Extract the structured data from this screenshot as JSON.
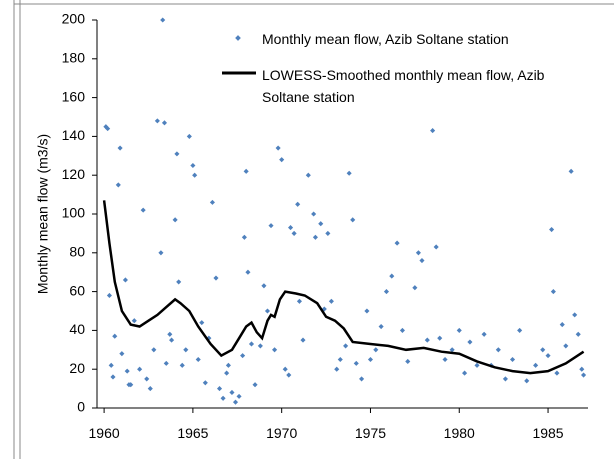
{
  "chart_data": {
    "type": "scatter-line",
    "y_label": "Monthly mean flow (m3/s)",
    "xlim": [
      1959.6,
      1987.25
    ],
    "xticks": [
      1960,
      1965,
      1970,
      1975,
      1980,
      1985
    ],
    "ylim": [
      0,
      200
    ],
    "yticks": [
      0,
      20,
      40,
      60,
      80,
      100,
      120,
      140,
      160,
      180,
      200
    ],
    "series": [
      {
        "name": "Monthly mean flow, Azib Soltane station",
        "kind": "scatter",
        "color": "#4f81bd",
        "x": [
          1960.1,
          1960.2,
          1960.3,
          1960.4,
          1960.5,
          1960.6,
          1960.8,
          1960.9,
          1961,
          1961.2,
          1961.3,
          1961.4,
          1961.5,
          1961.7,
          1962,
          1962.2,
          1962.4,
          1962.6,
          1962.8,
          1963,
          1963.2,
          1963.3,
          1963.4,
          1963.5,
          1963.7,
          1963.8,
          1964,
          1964.1,
          1964.2,
          1964.4,
          1964.6,
          1964.8,
          1965,
          1965.1,
          1965.3,
          1965.5,
          1965.7,
          1965.9,
          1966.1,
          1966.3,
          1966.5,
          1966.7,
          1966.9,
          1967,
          1967.2,
          1967.4,
          1967.6,
          1967.8,
          1967.9,
          1968,
          1968.1,
          1968.3,
          1968.5,
          1968.8,
          1969,
          1969.2,
          1969.4,
          1969.6,
          1969.8,
          1970,
          1970.2,
          1970.4,
          1970.5,
          1970.7,
          1970.9,
          1971,
          1971.2,
          1971.5,
          1971.8,
          1971.9,
          1972.2,
          1972.4,
          1972.6,
          1972.8,
          1973.1,
          1973.3,
          1973.6,
          1973.8,
          1974,
          1974.2,
          1974.5,
          1974.8,
          1975,
          1975.3,
          1975.6,
          1975.9,
          1976.2,
          1976.5,
          1976.8,
          1977.1,
          1977.5,
          1977.7,
          1977.9,
          1978.2,
          1978.5,
          1978.7,
          1978.9,
          1979.2,
          1979.6,
          1980,
          1980.3,
          1980.6,
          1981,
          1981.4,
          1981.8,
          1982.2,
          1982.6,
          1983,
          1983.4,
          1983.8,
          1984.3,
          1984.7,
          1985,
          1985.2,
          1985.3,
          1985.5,
          1985.8,
          1986,
          1986.3,
          1986.5,
          1986.7,
          1986.9,
          1987
        ],
        "values": [
          145,
          144,
          58,
          22,
          16,
          37,
          115,
          134,
          28,
          66,
          19,
          12,
          12,
          45,
          20,
          102,
          15,
          10,
          30,
          148,
          80,
          200,
          147,
          23,
          38,
          35,
          97,
          131,
          65,
          22,
          30,
          140,
          125,
          120,
          25,
          44,
          13,
          36,
          106,
          67,
          10,
          5,
          18,
          22,
          8,
          3,
          6,
          27,
          88,
          122,
          70,
          33,
          12,
          32,
          63,
          50,
          94,
          30,
          134,
          128,
          20,
          17,
          93,
          90,
          105,
          55,
          35,
          120,
          100,
          88,
          95,
          51,
          90,
          55,
          20,
          25,
          32,
          121,
          97,
          23,
          15,
          50,
          25,
          30,
          42,
          60,
          68,
          85,
          40,
          24,
          62,
          80,
          76,
          35,
          143,
          83,
          36,
          25,
          30,
          40,
          18,
          34,
          22,
          38,
          22,
          30,
          15,
          25,
          40,
          14,
          22,
          30,
          27,
          92,
          60,
          18,
          43,
          32,
          122,
          48,
          38,
          20,
          17
        ]
      },
      {
        "name": "LOWESS-Smoothed monthly mean flow, Azib Soltane station",
        "kind": "line",
        "color": "#000000",
        "x": [
          1960,
          1960.3,
          1960.6,
          1961,
          1961.5,
          1962,
          1962.5,
          1963,
          1963.5,
          1964,
          1964.3,
          1964.8,
          1965.3,
          1966,
          1966.6,
          1967.2,
          1967.6,
          1968,
          1968.3,
          1968.6,
          1968.9,
          1969.2,
          1969.4,
          1969.6,
          1969.9,
          1970.2,
          1970.8,
          1971.3,
          1972,
          1972.5,
          1973,
          1973.5,
          1974,
          1975,
          1976,
          1977,
          1978,
          1979,
          1980,
          1981,
          1982,
          1983,
          1984,
          1985,
          1986,
          1987
        ],
        "values": [
          107,
          85,
          65,
          50,
          43,
          42,
          45,
          48,
          52,
          56,
          54,
          50,
          42,
          33,
          27,
          30,
          36,
          42,
          44,
          39,
          36,
          45,
          48,
          47,
          56,
          60,
          59,
          58,
          54,
          47,
          45,
          41,
          34,
          33,
          32,
          30,
          31,
          29,
          28,
          24,
          21,
          19,
          18,
          19,
          23,
          29
        ]
      }
    ]
  }
}
